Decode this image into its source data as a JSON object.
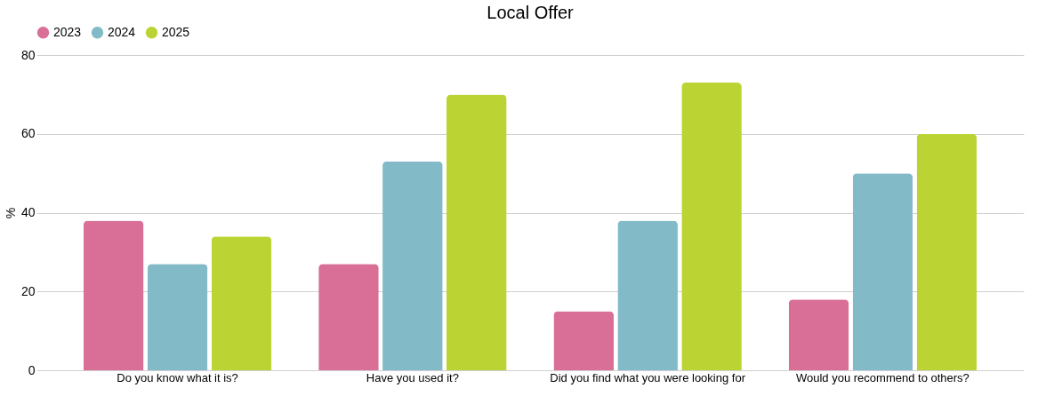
{
  "chart_data": {
    "type": "bar",
    "title": "Local Offer",
    "ylabel": "%",
    "categories": [
      "Do you know what it is?",
      "Have you used it?",
      "Did you find what you were looking for",
      "Would you recommend to others?"
    ],
    "series": [
      {
        "name": "2023",
        "color": "#d96f96",
        "values": [
          38,
          27,
          15,
          18
        ]
      },
      {
        "name": "2024",
        "color": "#82bac8",
        "values": [
          27,
          53,
          38,
          50
        ]
      },
      {
        "name": "2025",
        "color": "#bcd433",
        "values": [
          34,
          70,
          73,
          60
        ]
      }
    ],
    "ylim": [
      0,
      80
    ],
    "yticks": [
      0,
      20,
      40,
      60,
      80
    ],
    "grid": "y",
    "legend": "top"
  }
}
